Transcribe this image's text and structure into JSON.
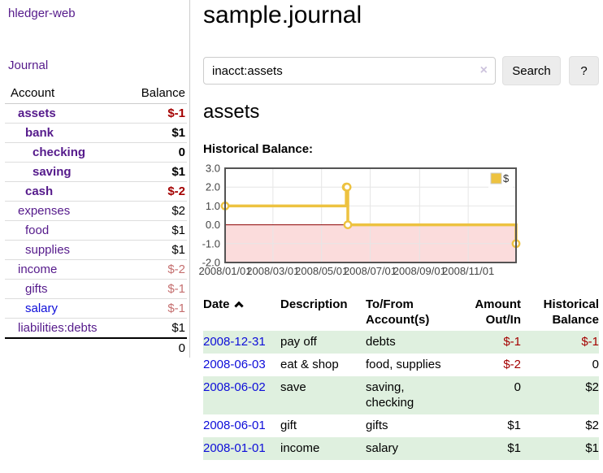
{
  "colors": {
    "link_purple": "#551a8b",
    "link_blue": "#0d0dd9",
    "negative_strong": "#a40000",
    "negative_soft": "#c56f6f",
    "row_green": "#dff0df",
    "chart_line_yellow": "#edc240",
    "chart_negative_fill": "#fbdcdc",
    "chart_zero_line": "#8b0000",
    "chart_border": "#545454",
    "chart_grid": "#e6e6e6"
  },
  "sidebar": {
    "brand": "hledger-web",
    "journal_link": "Journal",
    "accounts": {
      "header_account": "Account",
      "header_balance": "Balance",
      "rows": [
        {
          "name": "assets",
          "indent": 1,
          "balance": "$-1",
          "bold": true,
          "balance_tone": "neg-strong",
          "link_tone": "purple"
        },
        {
          "name": "bank",
          "indent": 2,
          "balance": "$1",
          "bold": true,
          "balance_tone": "normal",
          "link_tone": "purple"
        },
        {
          "name": "checking",
          "indent": 3,
          "balance": "0",
          "bold": true,
          "balance_tone": "normal",
          "link_tone": "purple"
        },
        {
          "name": "saving",
          "indent": 3,
          "balance": "$1",
          "bold": true,
          "balance_tone": "normal",
          "link_tone": "purple"
        },
        {
          "name": "cash",
          "indent": 2,
          "balance": "$-2",
          "bold": true,
          "balance_tone": "neg-strong",
          "link_tone": "purple"
        },
        {
          "name": "expenses",
          "indent": 1,
          "balance": "$2",
          "bold": false,
          "balance_tone": "normal",
          "link_tone": "purple"
        },
        {
          "name": "food",
          "indent": 2,
          "balance": "$1",
          "bold": false,
          "balance_tone": "normal",
          "link_tone": "purple"
        },
        {
          "name": "supplies",
          "indent": 2,
          "balance": "$1",
          "bold": false,
          "balance_tone": "normal",
          "link_tone": "purple"
        },
        {
          "name": "income",
          "indent": 1,
          "balance": "$-2",
          "bold": false,
          "balance_tone": "neg-soft",
          "link_tone": "purple"
        },
        {
          "name": "gifts",
          "indent": 2,
          "balance": "$-1",
          "bold": false,
          "balance_tone": "neg-soft",
          "link_tone": "purple"
        },
        {
          "name": "salary",
          "indent": 2,
          "balance": "$-1",
          "bold": false,
          "balance_tone": "neg-soft",
          "link_tone": "blue"
        },
        {
          "name": "liabilities:debts",
          "indent": 1,
          "balance": "$1",
          "bold": false,
          "balance_tone": "normal",
          "link_tone": "purple"
        }
      ],
      "total": "0"
    }
  },
  "main": {
    "title": "sample.journal",
    "search": {
      "value": "inacct:assets",
      "clear_label": "×",
      "button_label": "Search",
      "help_label": "?"
    },
    "account_heading": "assets",
    "chart_title": "Historical Balance:"
  },
  "chart_data": {
    "type": "line",
    "step": true,
    "title": "Historical Balance",
    "series": [
      {
        "name": "$",
        "color": "#edc240",
        "points": [
          [
            "2008-01-01",
            1
          ],
          [
            "2008-06-01",
            2
          ],
          [
            "2008-06-02",
            2
          ],
          [
            "2008-06-03",
            0
          ],
          [
            "2008-12-31",
            -1
          ]
        ]
      }
    ],
    "x_start": "2008-01-01",
    "x_end": "2008-12-31",
    "ylim": [
      -2,
      3
    ],
    "yticks": [
      {
        "v": 3,
        "label": "3.0"
      },
      {
        "v": 2,
        "label": "2.0"
      },
      {
        "v": 1,
        "label": "1.0"
      },
      {
        "v": 0,
        "label": "0.0"
      },
      {
        "v": -1,
        "label": "-1.0"
      },
      {
        "v": -2,
        "label": "-2.0"
      }
    ],
    "xticks": [
      {
        "date": "2008-01-01",
        "label": "2008/01/01"
      },
      {
        "date": "2008-03-01",
        "label": "2008/03/01"
      },
      {
        "date": "2008-05-01",
        "label": "2008/05/01"
      },
      {
        "date": "2008-07-01",
        "label": "2008/07/01"
      },
      {
        "date": "2008-09-01",
        "label": "2008/09/01"
      },
      {
        "date": "2008-11-01",
        "label": "2008/11/01"
      }
    ],
    "legend_label": "$",
    "legend_position": "top-right",
    "grid": true,
    "negative_region_shaded": true
  },
  "transactions": {
    "headers": {
      "date": "Date",
      "description": "Description",
      "accounts": "To/From\nAccount(s)",
      "amount": "Amount\nOut/In",
      "balance": "Historical\nBalance"
    },
    "rows": [
      {
        "date": "2008-12-31",
        "description": "pay off",
        "accounts": "debts",
        "amount": "$-1",
        "amount_neg": true,
        "balance": "$-1",
        "balance_neg": true
      },
      {
        "date": "2008-06-03",
        "description": "eat & shop",
        "accounts": "food, supplies",
        "amount": "$-2",
        "amount_neg": true,
        "balance": "0",
        "balance_neg": false
      },
      {
        "date": "2008-06-02",
        "description": "save",
        "accounts": "saving,\nchecking",
        "amount": "0",
        "amount_neg": false,
        "balance": "$2",
        "balance_neg": false
      },
      {
        "date": "2008-06-01",
        "description": "gift",
        "accounts": "gifts",
        "amount": "$1",
        "amount_neg": false,
        "balance": "$2",
        "balance_neg": false
      },
      {
        "date": "2008-01-01",
        "description": "income",
        "accounts": "salary",
        "amount": "$1",
        "amount_neg": false,
        "balance": "$1",
        "balance_neg": false
      }
    ]
  }
}
